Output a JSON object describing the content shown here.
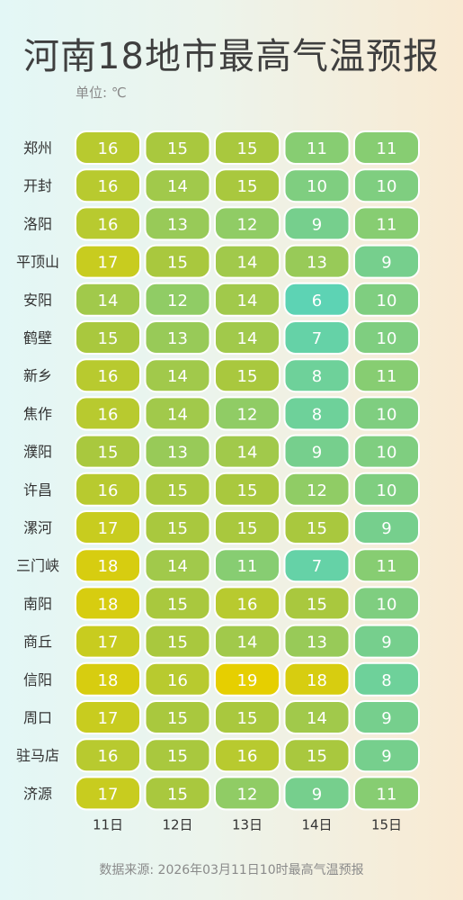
{
  "header": {
    "title": "河南18地市最高气温预报",
    "unit": "单位: ℃"
  },
  "footer": {
    "source": "数据来源: 2026年03月11日10时最高气温预报"
  },
  "chart_data": {
    "type": "heatmap",
    "categories": [
      "11日",
      "12日",
      "13日",
      "14日",
      "15日"
    ],
    "rows": [
      "郑州",
      "开封",
      "洛阳",
      "平顶山",
      "安阳",
      "鹤壁",
      "新乡",
      "焦作",
      "濮阳",
      "许昌",
      "漯河",
      "三门峡",
      "南阳",
      "商丘",
      "信阳",
      "周口",
      "驻马店",
      "济源"
    ],
    "values": [
      [
        16,
        15,
        15,
        11,
        11
      ],
      [
        16,
        14,
        15,
        10,
        10
      ],
      [
        16,
        13,
        12,
        9,
        11
      ],
      [
        17,
        15,
        14,
        13,
        9
      ],
      [
        14,
        12,
        14,
        6,
        10
      ],
      [
        15,
        13,
        14,
        7,
        10
      ],
      [
        16,
        14,
        15,
        8,
        11
      ],
      [
        16,
        14,
        12,
        8,
        10
      ],
      [
        15,
        13,
        14,
        9,
        10
      ],
      [
        16,
        15,
        15,
        12,
        10
      ],
      [
        17,
        15,
        15,
        15,
        9
      ],
      [
        18,
        14,
        11,
        7,
        11
      ],
      [
        18,
        15,
        16,
        15,
        10
      ],
      [
        17,
        15,
        14,
        13,
        9
      ],
      [
        18,
        16,
        19,
        18,
        8
      ],
      [
        17,
        15,
        15,
        14,
        9
      ],
      [
        16,
        15,
        16,
        15,
        9
      ],
      [
        17,
        15,
        12,
        9,
        11
      ]
    ],
    "color_scale": {
      "min_value": 6,
      "max_value": 19,
      "min_color": "#5dd3b4",
      "mid_value": 15,
      "mid_color": "#a9c83e",
      "max_color": "#e6cf00"
    }
  }
}
